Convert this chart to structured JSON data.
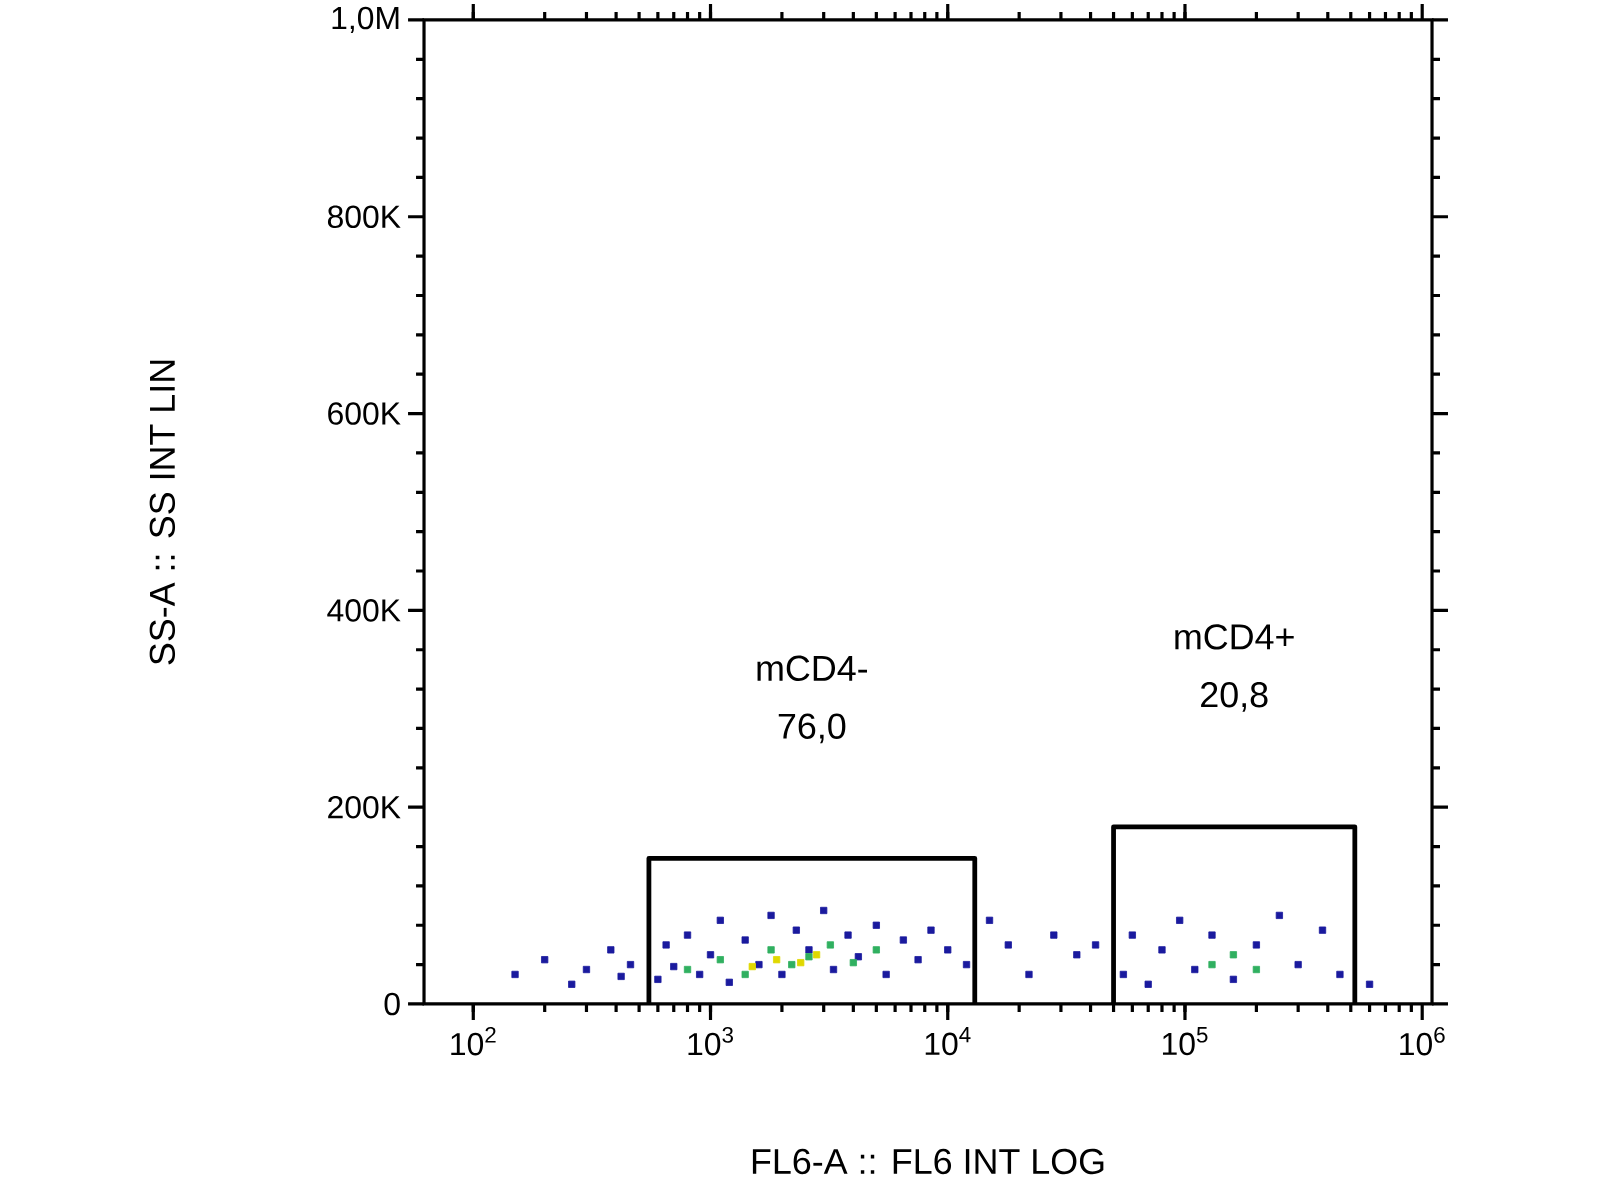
{
  "chart_data": {
    "type": "scatter",
    "xlabel": "FL6-A :: FL6 INT LOG",
    "ylabel": "SS-A :: SS INT LIN",
    "log": "x",
    "marker": "square",
    "xlim": [
      62,
      1100000
    ],
    "ylim": [
      0,
      1000000
    ],
    "xticks": [
      {
        "value": 100,
        "label": "10$^{2}$"
      },
      {
        "value": 1000,
        "label": "10$^{3}$"
      },
      {
        "value": 10000,
        "label": "10$^{4}$"
      },
      {
        "value": 100000,
        "label": "10$^{5}$"
      },
      {
        "value": 1000000,
        "label": "10$^{6}$"
      }
    ],
    "yticks": [
      {
        "value": 0,
        "label": "0"
      },
      {
        "value": 200000,
        "label": "200K"
      },
      {
        "value": 400000,
        "label": "400K"
      },
      {
        "value": 600000,
        "label": "600K"
      },
      {
        "value": 800000,
        "label": "800K"
      },
      {
        "value": 1000000,
        "label": "1,0M"
      }
    ],
    "series": [
      {
        "color": "#1a1a9e",
        "x": [
          150,
          200,
          260,
          300,
          380,
          420,
          460,
          600,
          650,
          700,
          800,
          900,
          1000,
          1100,
          1200,
          1400,
          1600,
          1800,
          2000,
          2300,
          2600,
          3000,
          3300,
          3800,
          4200,
          5000,
          5500,
          6500,
          7500,
          8500,
          10000,
          12000,
          15000,
          18000,
          22000,
          28000,
          35000,
          42000,
          55000,
          60000,
          70000,
          80000,
          95000,
          110000,
          130000,
          160000,
          200000,
          250000,
          300000,
          380000,
          450000,
          600000
        ],
        "values": [
          30000,
          45000,
          20000,
          35000,
          55000,
          28000,
          40000,
          25000,
          60000,
          38000,
          70000,
          30000,
          50000,
          85000,
          22000,
          65000,
          40000,
          90000,
          30000,
          75000,
          55000,
          95000,
          35000,
          70000,
          48000,
          80000,
          30000,
          65000,
          45000,
          75000,
          55000,
          40000,
          85000,
          60000,
          30000,
          70000,
          50000,
          60000,
          30000,
          70000,
          20000,
          55000,
          85000,
          35000,
          70000,
          25000,
          60000,
          90000,
          40000,
          75000,
          30000,
          20000
        ]
      },
      {
        "color": "#30b060",
        "x": [
          800,
          1100,
          1400,
          1800,
          2200,
          2600,
          3200,
          4000,
          5000,
          130000,
          160000,
          200000
        ],
        "values": [
          35000,
          45000,
          30000,
          55000,
          40000,
          48000,
          60000,
          42000,
          55000,
          40000,
          50000,
          35000
        ]
      },
      {
        "color": "#e0d800",
        "x": [
          1500,
          1900,
          2400,
          2800
        ],
        "values": [
          38000,
          45000,
          42000,
          50000
        ]
      },
      {
        "type": "line",
        "marker": "none",
        "color": "#000000",
        "x": [
          550,
          550,
          13000,
          13000
        ],
        "values": [
          0,
          148000,
          148000,
          0
        ]
      },
      {
        "type": "line",
        "marker": "none",
        "color": "#000000",
        "x": [
          50000,
          50000,
          520000,
          520000
        ],
        "values": [
          0,
          180000,
          180000,
          0
        ]
      }
    ],
    "annotations": [
      "mCD4-",
      "76,0",
      "mCD4+",
      "20,8"
    ]
  }
}
